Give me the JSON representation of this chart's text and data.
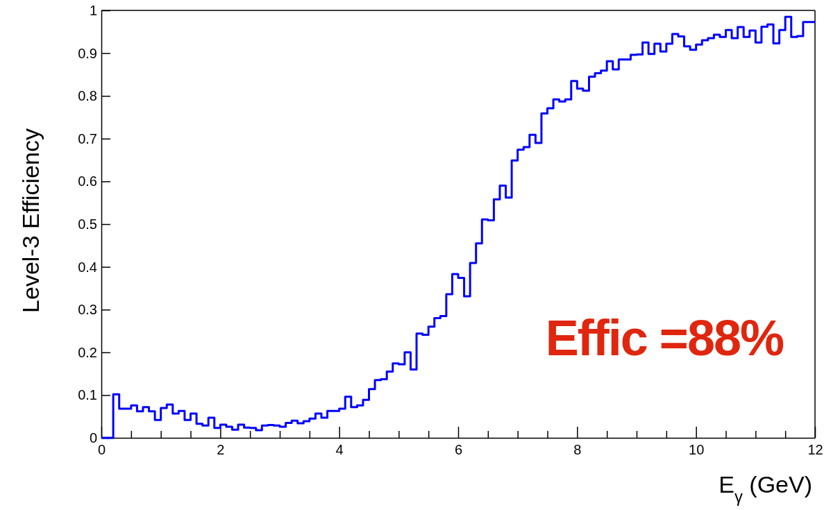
{
  "chart_data": {
    "type": "histogram",
    "xlabel": "E$_{γ}$ (GeV)",
    "ylabel": "Level-3 Efficiency",
    "annotations": [
      "Effic =88%"
    ],
    "color": "#0000ff",
    "bins": [
      0,
      0.1,
      0.2,
      0.3,
      0.4,
      0.5,
      0.6,
      0.7,
      0.8,
      0.9,
      1,
      1.1,
      1.2,
      1.3,
      1.4,
      1.5,
      1.6,
      1.7,
      1.8,
      1.9,
      2,
      2.1,
      2.2,
      2.3,
      2.4,
      2.5,
      2.6,
      2.7,
      2.8,
      2.9,
      3,
      3.1,
      3.2,
      3.3,
      3.4,
      3.5,
      3.6,
      3.7,
      3.8,
      3.9,
      4,
      4.1,
      4.2,
      4.3,
      4.4,
      4.5,
      4.6,
      4.7,
      4.8,
      4.9,
      5,
      5.1,
      5.2,
      5.3,
      5.4,
      5.5,
      5.6,
      5.7,
      5.8,
      5.9,
      6,
      6.1,
      6.2,
      6.3,
      6.4,
      6.5,
      6.6,
      6.7,
      6.8,
      6.9,
      7,
      7.1,
      7.2,
      7.3,
      7.4,
      7.5,
      7.6,
      7.7,
      7.8,
      7.9,
      8,
      8.1,
      8.2,
      8.3,
      8.4,
      8.5,
      8.6,
      8.7,
      8.8,
      8.9,
      9,
      9.1,
      9.2,
      9.3,
      9.4,
      9.5,
      9.6,
      9.7,
      9.8,
      9.9,
      10,
      10.1,
      10.2,
      10.3,
      10.4,
      10.5,
      10.6,
      10.7,
      10.8,
      10.9,
      11,
      11.1,
      11.2,
      11.3,
      11.4,
      11.5,
      11.6,
      11.7,
      11.8,
      11.9,
      12
    ],
    "values": [
      0,
      0,
      0.102,
      0.068,
      0.068,
      0.076,
      0.062,
      0.072,
      0.062,
      0.042,
      0.07,
      0.078,
      0.057,
      0.063,
      0.042,
      0.057,
      0.033,
      0.029,
      0.047,
      0.023,
      0.031,
      0.026,
      0.019,
      0.031,
      0.024,
      0.023,
      0.018,
      0.029,
      0.03,
      0.029,
      0.026,
      0.035,
      0.04,
      0.034,
      0.039,
      0.045,
      0.057,
      0.047,
      0.063,
      0.063,
      0.068,
      0.096,
      0.072,
      0.076,
      0.089,
      0.114,
      0.135,
      0.137,
      0.155,
      0.174,
      0.172,
      0.2,
      0.16,
      0.244,
      0.241,
      0.26,
      0.28,
      0.285,
      0.336,
      0.383,
      0.374,
      0.331,
      0.409,
      0.455,
      0.511,
      0.509,
      0.558,
      0.59,
      0.562,
      0.649,
      0.674,
      0.68,
      0.709,
      0.69,
      0.759,
      0.771,
      0.792,
      0.787,
      0.792,
      0.835,
      0.817,
      0.812,
      0.845,
      0.853,
      0.859,
      0.881,
      0.862,
      0.885,
      0.885,
      0.896,
      0.897,
      0.925,
      0.898,
      0.922,
      0.904,
      0.922,
      0.945,
      0.939,
      0.916,
      0.908,
      0.92,
      0.93,
      0.935,
      0.943,
      0.938,
      0.954,
      0.935,
      0.961,
      0.938,
      0.953,
      0.925,
      0.962,
      0.967,
      0.923,
      0.954,
      0.985,
      0.938,
      0.94,
      0.973,
      0.973
    ],
    "xlim": [
      0,
      12
    ],
    "xticks": [
      0,
      {
        "value": 0.5,
        "label": null
      },
      {
        "value": 1,
        "label": null
      },
      {
        "value": 1.5,
        "label": null
      },
      2,
      {
        "value": 2.5,
        "label": null
      },
      {
        "value": 3,
        "label": null
      },
      {
        "value": 3.5,
        "label": null
      },
      4,
      {
        "value": 4.5,
        "label": null
      },
      {
        "value": 5,
        "label": null
      },
      {
        "value": 5.5,
        "label": null
      },
      6,
      {
        "value": 6.5,
        "label": null
      },
      {
        "value": 7,
        "label": null
      },
      {
        "value": 7.5,
        "label": null
      },
      8,
      {
        "value": 8.5,
        "label": null
      },
      {
        "value": 9,
        "label": null
      },
      {
        "value": 9.5,
        "label": null
      },
      10,
      {
        "value": 10.5,
        "label": null
      },
      {
        "value": 11,
        "label": null
      },
      {
        "value": 11.5,
        "label": null
      },
      12
    ],
    "ylim": [
      0,
      1
    ],
    "yticks": [
      0,
      0.1,
      0.2,
      0.3,
      0.4,
      0.5,
      0.6,
      0.7,
      0.8,
      0.9,
      1
    ]
  }
}
